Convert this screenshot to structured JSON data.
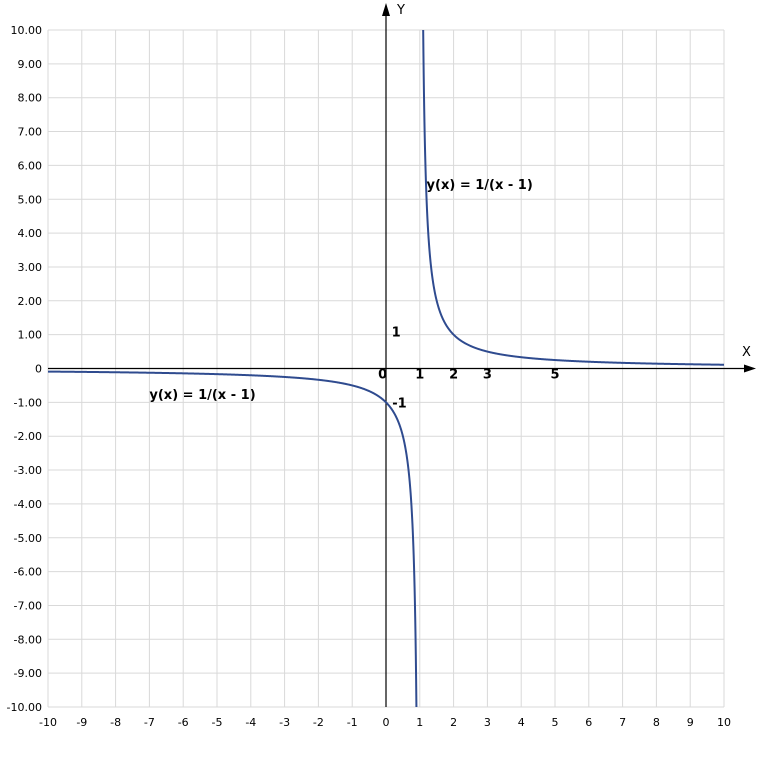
{
  "chart_data": {
    "type": "line",
    "xlabel": "X",
    "ylabel": "Y",
    "xlim": [
      -10,
      10
    ],
    "ylim": [
      -10,
      10
    ],
    "grid": true,
    "x_ticks": [
      "-10",
      "-9",
      "-8",
      "-7",
      "-6",
      "-5",
      "-4",
      "-3",
      "-2",
      "-1",
      "0",
      "1",
      "2",
      "3",
      "4",
      "5",
      "6",
      "7",
      "8",
      "9",
      "10"
    ],
    "y_ticks": [
      "10.00",
      "9.00",
      "8.00",
      "7.00",
      "6.00",
      "5.00",
      "4.00",
      "3.00",
      "2.00",
      "1.00",
      "0",
      "-1.00",
      "-2.00",
      "-3.00",
      "-4.00",
      "-5.00",
      "-6.00",
      "-7.00",
      "-8.00",
      "-9.00",
      "-10.00"
    ],
    "series": [
      {
        "function": "1/(x - 1)",
        "x": [
          -10,
          -8,
          -6,
          -4,
          -3,
          -2,
          -1,
          -0.5,
          0,
          0.5,
          0.8,
          0.9,
          0.95,
          1.05,
          1.1,
          1.2,
          1.5,
          2,
          3,
          4,
          5,
          7,
          10
        ],
        "values": [
          -0.09,
          -0.11,
          -0.14,
          -0.2,
          -0.25,
          -0.33,
          -0.5,
          -0.67,
          -1,
          -2,
          -5,
          -10,
          -20,
          20,
          10,
          5,
          2,
          1,
          0.5,
          0.33,
          0.25,
          0.17,
          0.11
        ]
      }
    ],
    "annotations": [
      {
        "text": "y(x) = 1/(x - 1)",
        "x": 1.2,
        "y": 5.3
      },
      {
        "text": "y(x) = 1/(x - 1)",
        "x": -7,
        "y": -0.9
      },
      {
        "text": "1",
        "x": 0.3,
        "y": 0.95
      },
      {
        "text": "-1",
        "x": 0.4,
        "y": -1.15
      },
      {
        "text": "0",
        "x": -0.1,
        "y": -0.3
      },
      {
        "text": "1",
        "x": 1,
        "y": -0.3
      },
      {
        "text": "2",
        "x": 2,
        "y": -0.3
      },
      {
        "text": "3",
        "x": 3,
        "y": -0.3
      },
      {
        "text": "5",
        "x": 5,
        "y": -0.3
      }
    ],
    "colors": {
      "curve": "#2f4b8f",
      "grid": "#d9d9d9",
      "axis": "#000000"
    }
  }
}
